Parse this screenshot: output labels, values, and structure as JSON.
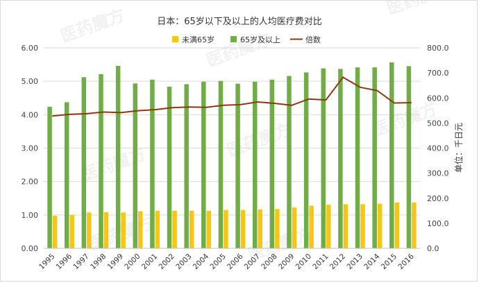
{
  "chart_data": {
    "type": "bar",
    "title": "日本：65岁以下及以上的人均医疗费对比",
    "ylabel_right": "单位：千日元",
    "categories": [
      "1995",
      "1996",
      "1997",
      "1998",
      "1999",
      "2000",
      "2001",
      "2002",
      "2003",
      "2004",
      "2005",
      "2006",
      "2007",
      "2008",
      "2009",
      "2010",
      "2011",
      "2012",
      "2013",
      "2014",
      "2015",
      "2016"
    ],
    "series": [
      {
        "name": "未满65岁",
        "type": "bar",
        "axis": "right",
        "color": "#f5c518",
        "values": [
          130,
          133,
          143,
          144,
          143,
          148,
          150,
          150,
          150,
          150,
          153,
          153,
          155,
          157,
          163,
          170,
          174,
          176,
          176,
          178,
          183,
          183
        ]
      },
      {
        "name": "65岁及以上",
        "type": "bar",
        "axis": "right",
        "color": "#70ad47",
        "values": [
          565,
          583,
          683,
          695,
          728,
          658,
          673,
          645,
          655,
          665,
          668,
          657,
          665,
          673,
          688,
          702,
          718,
          716,
          722,
          722,
          742,
          727
        ]
      },
      {
        "name": "倍数",
        "type": "line",
        "axis": "left",
        "color": "#8b3a0f",
        "values": [
          3.96,
          4.01,
          4.03,
          4.08,
          4.06,
          4.12,
          4.15,
          4.21,
          4.23,
          4.22,
          4.28,
          4.3,
          4.38,
          4.34,
          4.28,
          4.47,
          4.44,
          5.12,
          4.82,
          4.72,
          4.35,
          4.36
        ]
      }
    ],
    "y_left": {
      "min": 0,
      "max": 6,
      "step": 1,
      "ticks": [
        "0.00",
        "1.00",
        "2.00",
        "3.00",
        "4.00",
        "5.00",
        "6.00"
      ]
    },
    "y_right": {
      "min": 0,
      "max": 800,
      "step": 100,
      "ticks": [
        "0.0",
        "100.0",
        "200.0",
        "300.0",
        "400.0",
        "500.0",
        "600.0",
        "700.0",
        "800.0"
      ]
    },
    "grid": true,
    "legend_position": "top-center",
    "watermark": "医药魔方 PHARMCUBE"
  }
}
